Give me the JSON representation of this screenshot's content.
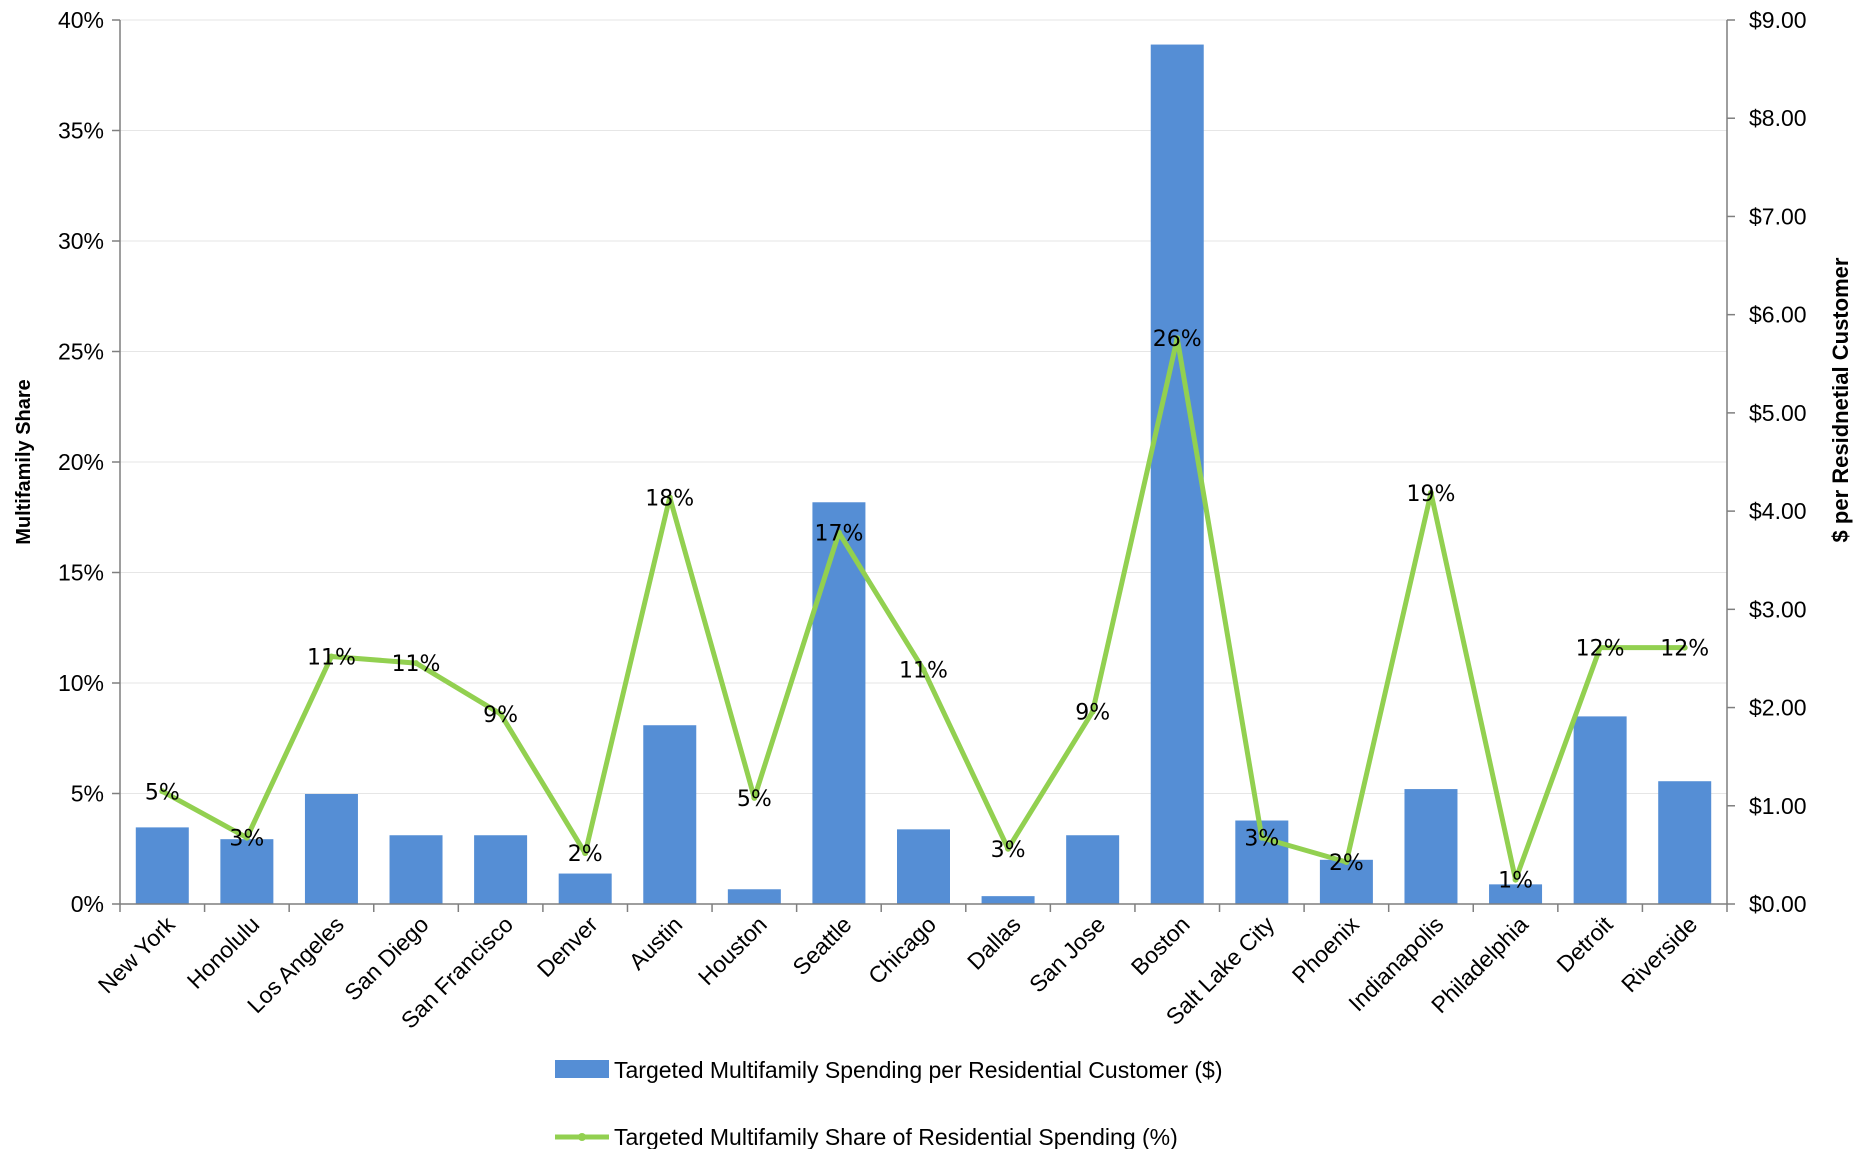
{
  "chart_data": {
    "type": "bar+line",
    "categories": [
      "New York",
      "Honolulu",
      "Los Angeles",
      "San Diego",
      "San Francisco",
      "Denver",
      "Austin",
      "Houston",
      "Seattle",
      "Chicago",
      "Dallas",
      "San Jose",
      "Boston",
      "Salt Lake City",
      "Phoenix",
      "Indianapolis",
      "Philadelphia",
      "Detroit",
      "Riverside"
    ],
    "series": [
      {
        "name": "Targeted Multifamily Spending per Residential Customer ($)",
        "type": "bar",
        "axis": "right",
        "color": "#558ED5",
        "values": [
          0.78,
          0.66,
          1.12,
          0.7,
          0.7,
          0.31,
          1.82,
          0.15,
          4.09,
          0.76,
          0.08,
          0.7,
          8.75,
          0.85,
          0.45,
          1.17,
          0.2,
          1.91,
          1.25
        ]
      },
      {
        "name": "Targeted Multifamily Share of Residential Spending (%)",
        "type": "line",
        "axis": "left",
        "color": "#92D050",
        "values": [
          5.1,
          3.0,
          11.2,
          10.9,
          8.6,
          2.3,
          18.4,
          4.8,
          16.8,
          10.6,
          2.5,
          8.7,
          25.6,
          3.0,
          1.9,
          18.6,
          1.1,
          11.6,
          11.6
        ],
        "labels": [
          "5%",
          "3%",
          "11%",
          "11%",
          "9%",
          "2%",
          "18%",
          "5%",
          "17%",
          "11%",
          "3%",
          "9%",
          "26%",
          "3%",
          "2%",
          "19%",
          "1%",
          "12%",
          "12%"
        ]
      }
    ],
    "y_left": {
      "label": "Multifamily Share",
      "ylim": [
        0,
        40
      ],
      "ticks": [
        "0%",
        "5%",
        "10%",
        "15%",
        "20%",
        "25%",
        "30%",
        "35%",
        "40%"
      ]
    },
    "y_right": {
      "label": "$ per Residnetial Customer",
      "ylim": [
        0,
        9
      ],
      "ticks": [
        "$0.00",
        "$1.00",
        "$2.00",
        "$3.00",
        "$4.00",
        "$5.00",
        "$6.00",
        "$7.00",
        "$8.00",
        "$9.00"
      ]
    },
    "grid": true,
    "legend_position": "bottom"
  }
}
